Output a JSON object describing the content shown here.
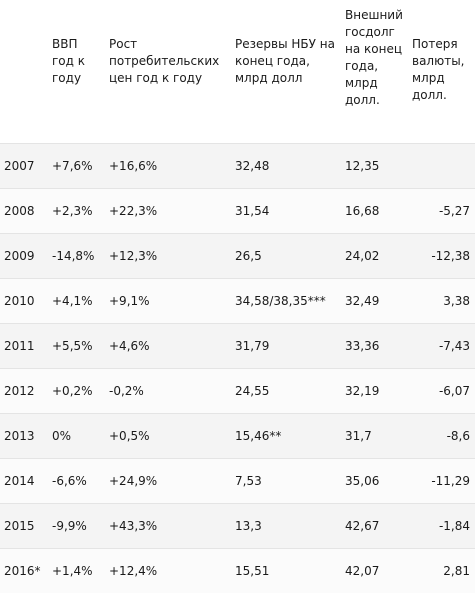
{
  "table": {
    "headers": [
      "",
      "ВВП год к году",
      "Рост потребительских цен год к году",
      "Резервы НБУ на конец года, млрд долл",
      "Внешний госдолг на конец года, млрд долл.",
      "Потеря валюты, млрд долл."
    ],
    "rows": [
      [
        "2007",
        "+7,6%",
        "+16,6%",
        "32,48",
        "12,35",
        ""
      ],
      [
        "2008",
        "+2,3%",
        "+22,3%",
        "31,54",
        "16,68",
        "-5,27"
      ],
      [
        "2009",
        "-14,8%",
        "+12,3%",
        "26,5",
        "24,02",
        "-12,38"
      ],
      [
        "2010",
        "+4,1%",
        "+9,1%",
        "34,58/38,35***",
        "32,49",
        "3,38"
      ],
      [
        "2011",
        "+5,5%",
        "+4,6%",
        "31,79",
        "33,36",
        "-7,43"
      ],
      [
        "2012",
        "+0,2%",
        "-0,2%",
        "24,55",
        "32,19",
        "-6,07"
      ],
      [
        "2013",
        "0%",
        "+0,5%",
        "15,46**",
        "31,7",
        "-8,6"
      ],
      [
        "2014",
        "-6,6%",
        "+24,9%",
        "7,53",
        "35,06",
        "-11,29"
      ],
      [
        "2015",
        "-9,9%",
        "+43,3%",
        "13,3",
        "42,67",
        "-1,84"
      ],
      [
        "2016*",
        "+1,4%",
        "+12,4%",
        "15,51",
        "42,07",
        "2,81"
      ]
    ]
  }
}
